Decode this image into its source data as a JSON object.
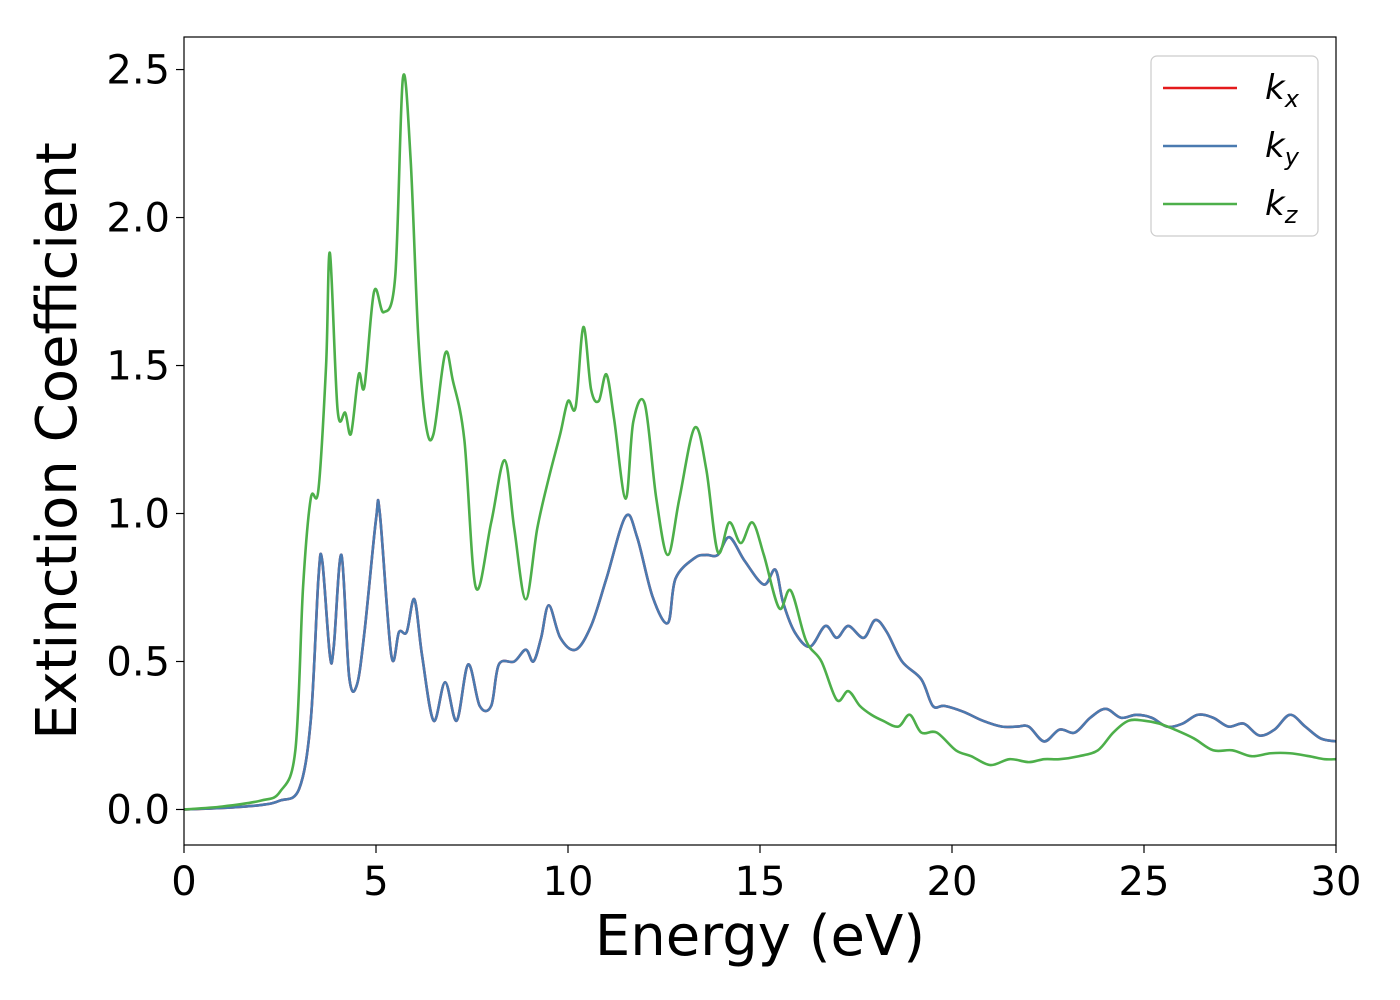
{
  "chart_data": {
    "type": "line",
    "title": "",
    "xlabel": "Energy (eV)",
    "ylabel": "Extinction Coefficient",
    "xlim": [
      0,
      30
    ],
    "ylim": [
      -0.12,
      2.61
    ],
    "xticks": [
      0,
      5,
      10,
      15,
      20,
      25,
      30
    ],
    "xtick_labels": [
      "0",
      "5",
      "10",
      "15",
      "20",
      "25",
      "30"
    ],
    "yticks": [
      0.0,
      0.5,
      1.0,
      1.5,
      2.0,
      2.5
    ],
    "ytick_labels": [
      "0.0",
      "0.5",
      "1.0",
      "1.5",
      "2.0",
      "2.5"
    ],
    "grid": false,
    "legend_position": "top-right",
    "series": [
      {
        "name": "k_x",
        "label_base": "k",
        "label_sub": "x",
        "color": "#e41a1c",
        "x": [
          0,
          1,
          2,
          2.5,
          3,
          3.3,
          3.5,
          3.6,
          3.8,
          3.9,
          4.1,
          4.3,
          4.5,
          4.7,
          5.0,
          5.1,
          5.4,
          5.6,
          5.8,
          6.0,
          6.2,
          6.5,
          6.8,
          7.1,
          7.4,
          7.7,
          8.0,
          8.2,
          8.6,
          8.9,
          9.1,
          9.3,
          9.5,
          9.8,
          10.2,
          10.6,
          11.0,
          11.5,
          11.8,
          12.2,
          12.6,
          12.8,
          13.3,
          13.6,
          13.9,
          14.2,
          14.6,
          15.1,
          15.4,
          15.6,
          15.9,
          16.3,
          16.7,
          17.0,
          17.3,
          17.7,
          18.0,
          18.3,
          18.7,
          19.2,
          19.5,
          19.8,
          20.3,
          20.8,
          21.3,
          21.7,
          22.0,
          22.4,
          22.8,
          23.2,
          23.6,
          24.0,
          24.4,
          24.8,
          25.2,
          25.6,
          26.0,
          26.4,
          26.8,
          27.2,
          27.6,
          28.0,
          28.4,
          28.8,
          29.2,
          29.6,
          30.0
        ],
        "y": [
          0.0,
          0.005,
          0.015,
          0.03,
          0.07,
          0.3,
          0.78,
          0.84,
          0.52,
          0.55,
          0.86,
          0.45,
          0.42,
          0.6,
          0.98,
          1.0,
          0.52,
          0.6,
          0.6,
          0.71,
          0.52,
          0.3,
          0.43,
          0.3,
          0.49,
          0.35,
          0.35,
          0.49,
          0.5,
          0.54,
          0.5,
          0.58,
          0.69,
          0.58,
          0.54,
          0.62,
          0.78,
          0.99,
          0.92,
          0.72,
          0.63,
          0.78,
          0.85,
          0.86,
          0.86,
          0.92,
          0.84,
          0.76,
          0.81,
          0.7,
          0.6,
          0.55,
          0.62,
          0.58,
          0.62,
          0.58,
          0.64,
          0.6,
          0.5,
          0.44,
          0.35,
          0.35,
          0.33,
          0.3,
          0.28,
          0.28,
          0.28,
          0.23,
          0.27,
          0.26,
          0.31,
          0.34,
          0.31,
          0.32,
          0.31,
          0.28,
          0.29,
          0.32,
          0.31,
          0.28,
          0.29,
          0.25,
          0.27,
          0.32,
          0.28,
          0.24,
          0.23
        ]
      },
      {
        "name": "k_y",
        "label_base": "k",
        "label_sub": "y",
        "color": "#4a7ab0",
        "x": [
          0,
          1,
          2,
          2.5,
          3,
          3.3,
          3.5,
          3.6,
          3.8,
          3.9,
          4.1,
          4.3,
          4.5,
          4.7,
          5.0,
          5.1,
          5.4,
          5.6,
          5.8,
          6.0,
          6.2,
          6.5,
          6.8,
          7.1,
          7.4,
          7.7,
          8.0,
          8.2,
          8.6,
          8.9,
          9.1,
          9.3,
          9.5,
          9.8,
          10.2,
          10.6,
          11.0,
          11.5,
          11.8,
          12.2,
          12.6,
          12.8,
          13.3,
          13.6,
          13.9,
          14.2,
          14.6,
          15.1,
          15.4,
          15.6,
          15.9,
          16.3,
          16.7,
          17.0,
          17.3,
          17.7,
          18.0,
          18.3,
          18.7,
          19.2,
          19.5,
          19.8,
          20.3,
          20.8,
          21.3,
          21.7,
          22.0,
          22.4,
          22.8,
          23.2,
          23.6,
          24.0,
          24.4,
          24.8,
          25.2,
          25.6,
          26.0,
          26.4,
          26.8,
          27.2,
          27.6,
          28.0,
          28.4,
          28.8,
          29.2,
          29.6,
          30.0
        ],
        "y": [
          0.0,
          0.005,
          0.015,
          0.03,
          0.07,
          0.3,
          0.78,
          0.84,
          0.52,
          0.55,
          0.86,
          0.45,
          0.42,
          0.6,
          0.98,
          1.0,
          0.52,
          0.6,
          0.6,
          0.71,
          0.52,
          0.3,
          0.43,
          0.3,
          0.49,
          0.35,
          0.35,
          0.49,
          0.5,
          0.54,
          0.5,
          0.58,
          0.69,
          0.58,
          0.54,
          0.62,
          0.78,
          0.99,
          0.92,
          0.72,
          0.63,
          0.78,
          0.85,
          0.86,
          0.86,
          0.92,
          0.84,
          0.76,
          0.81,
          0.7,
          0.6,
          0.55,
          0.62,
          0.58,
          0.62,
          0.58,
          0.64,
          0.6,
          0.5,
          0.44,
          0.35,
          0.35,
          0.33,
          0.3,
          0.28,
          0.28,
          0.28,
          0.23,
          0.27,
          0.26,
          0.31,
          0.34,
          0.31,
          0.32,
          0.31,
          0.28,
          0.29,
          0.32,
          0.31,
          0.28,
          0.29,
          0.25,
          0.27,
          0.32,
          0.28,
          0.24,
          0.23
        ]
      },
      {
        "name": "k_z",
        "label_base": "k",
        "label_sub": "z",
        "color": "#4daf4a",
        "x": [
          0,
          1,
          2,
          2.5,
          2.9,
          3.1,
          3.3,
          3.5,
          3.7,
          3.8,
          4.0,
          4.2,
          4.35,
          4.55,
          4.7,
          4.95,
          5.2,
          5.5,
          5.7,
          5.9,
          6.1,
          6.3,
          6.5,
          6.8,
          7.0,
          7.3,
          7.6,
          8.0,
          8.35,
          8.6,
          8.9,
          9.2,
          9.5,
          9.8,
          10.0,
          10.2,
          10.4,
          10.6,
          10.8,
          11.0,
          11.2,
          11.5,
          11.7,
          12.0,
          12.3,
          12.6,
          12.9,
          13.3,
          13.6,
          13.9,
          14.2,
          14.5,
          14.8,
          15.1,
          15.5,
          15.8,
          16.2,
          16.6,
          17.0,
          17.3,
          17.6,
          17.9,
          18.2,
          18.6,
          18.9,
          19.2,
          19.6,
          20.1,
          20.5,
          21.0,
          21.5,
          22.0,
          22.4,
          22.8,
          23.3,
          23.8,
          24.2,
          24.6,
          25.0,
          25.4,
          25.8,
          26.3,
          26.8,
          27.3,
          27.8,
          28.3,
          28.8,
          29.3,
          29.7,
          30.0
        ],
        "y": [
          0.0,
          0.01,
          0.03,
          0.06,
          0.2,
          0.75,
          1.05,
          1.08,
          1.5,
          1.88,
          1.35,
          1.34,
          1.27,
          1.47,
          1.43,
          1.75,
          1.68,
          1.8,
          2.47,
          2.2,
          1.6,
          1.3,
          1.27,
          1.54,
          1.45,
          1.25,
          0.75,
          0.97,
          1.18,
          0.95,
          0.71,
          0.95,
          1.12,
          1.27,
          1.38,
          1.36,
          1.63,
          1.42,
          1.38,
          1.47,
          1.32,
          1.05,
          1.31,
          1.37,
          1.05,
          0.86,
          1.05,
          1.29,
          1.15,
          0.87,
          0.97,
          0.9,
          0.97,
          0.86,
          0.68,
          0.74,
          0.57,
          0.5,
          0.37,
          0.4,
          0.35,
          0.32,
          0.3,
          0.28,
          0.32,
          0.26,
          0.26,
          0.2,
          0.18,
          0.15,
          0.17,
          0.16,
          0.17,
          0.17,
          0.18,
          0.2,
          0.26,
          0.3,
          0.3,
          0.29,
          0.27,
          0.24,
          0.2,
          0.2,
          0.18,
          0.19,
          0.19,
          0.18,
          0.17,
          0.17
        ]
      }
    ]
  }
}
